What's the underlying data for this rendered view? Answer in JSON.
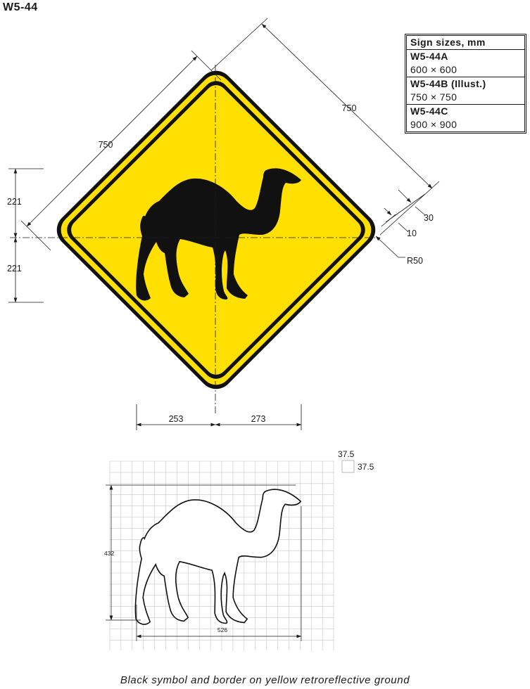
{
  "sign_code": "W5-44",
  "sizes_table": {
    "title": "Sign sizes, mm",
    "rows": [
      {
        "variant": "W5-44A",
        "size": "600 × 600"
      },
      {
        "variant": "W5-44B (Illust.)",
        "size": "750 × 750"
      },
      {
        "variant": "W5-44C",
        "size": "900 × 900"
      }
    ]
  },
  "dimensions": {
    "side_left": "750",
    "side_right": "750",
    "half_upper": "221",
    "half_lower": "221",
    "border_outer": "30",
    "border_inner": "10",
    "corner_radius": "R50",
    "base_left": "253",
    "base_right": "273"
  },
  "grid": {
    "cell_w": "37.5",
    "cell_h": "37.5",
    "symbol_height": "432",
    "symbol_width": "526"
  },
  "caption": "Black symbol and border on yellow retroreflective ground",
  "colors": {
    "sign_yellow": "#ffe000",
    "symbol_black": "#111111",
    "line": "#1a1a1a",
    "grid": "#c8c8c8"
  }
}
